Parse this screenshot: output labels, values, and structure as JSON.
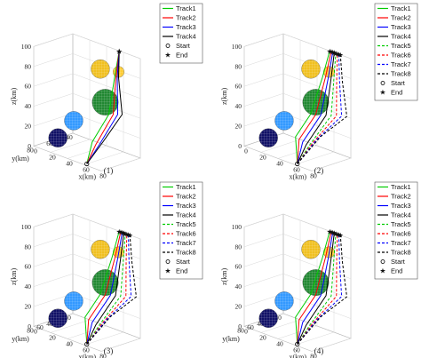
{
  "chart_data": [
    {
      "type": "line",
      "subplot_label": "(1)",
      "zlabel": "z(km)",
      "xlabel": "x(km)",
      "ylabel": "y(km)",
      "z_ticks": [
        "0",
        "20",
        "40",
        "60",
        "80",
        "100"
      ],
      "x_ticks": [
        "0",
        "20",
        "40",
        "60",
        "80"
      ],
      "y_ticks": [
        "80",
        "60",
        "40"
      ],
      "legend": [
        "Track1",
        "Track2",
        "Track3",
        "Track4",
        "Start",
        "End"
      ],
      "colors": {
        "Track1": "#00cc00",
        "Track2": "#ff0000",
        "Track3": "#0000ff",
        "Track4": "#000000"
      },
      "styles": {
        "Track1": "solid",
        "Track2": "solid",
        "Track3": "solid",
        "Track4": "solid"
      },
      "start": [
        [
          60,
          70,
          0
        ]
      ],
      "end": [
        [
          60,
          0,
          100
        ]
      ],
      "obstacles": [
        {
          "color": "#f0c020",
          "center": [
            50,
            30,
            85
          ],
          "r": 10
        },
        {
          "color": "#ffcc33",
          "center": [
            60,
            10,
            82
          ],
          "r": 6
        },
        {
          "color": "#228833",
          "center": [
            50,
            20,
            50
          ],
          "r": 14
        },
        {
          "color": "#3399ff",
          "center": [
            30,
            50,
            30
          ],
          "r": 10
        },
        {
          "color": "#111166",
          "center": [
            20,
            65,
            12
          ],
          "r": 10
        }
      ]
    },
    {
      "type": "line",
      "subplot_label": "(2)",
      "zlabel": "z(km)",
      "xlabel": "x(km)",
      "ylabel": "",
      "z_ticks": [
        "0",
        "20",
        "40",
        "60",
        "80",
        "100"
      ],
      "x_ticks": [
        "0",
        "20",
        "40",
        "60",
        "80"
      ],
      "legend": [
        "Track1",
        "Track2",
        "Track3",
        "Track4",
        "Track5",
        "Track6",
        "Track7",
        "Track8",
        "Start",
        "End"
      ],
      "colors": {
        "Track1": "#00cc00",
        "Track2": "#ff0000",
        "Track3": "#0000ff",
        "Track4": "#000000",
        "Track5": "#00cc00",
        "Track6": "#ff0000",
        "Track7": "#0000ff",
        "Track8": "#000000"
      },
      "styles": {
        "Track1": "solid",
        "Track2": "solid",
        "Track3": "solid",
        "Track4": "solid",
        "Track5": "dashed",
        "Track6": "dashed",
        "Track7": "dashed",
        "Track8": "dashed"
      }
    },
    {
      "type": "line",
      "subplot_label": "(3)",
      "zlabel": "z(km)",
      "xlabel": "x(km)",
      "ylabel": "y(km)",
      "z_ticks": [
        "0",
        "20",
        "40",
        "60",
        "80",
        "100"
      ],
      "x_ticks": [
        "0",
        "20",
        "40",
        "60",
        "80"
      ],
      "y_ticks": [
        "80",
        "60",
        "40",
        "20",
        "0"
      ],
      "legend": [
        "Track1",
        "Track2",
        "Track3",
        "Track4",
        "Track5",
        "Track6",
        "Track7",
        "Track8",
        "Start",
        "End"
      ],
      "colors": {
        "Track1": "#00cc00",
        "Track2": "#ff0000",
        "Track3": "#0000ff",
        "Track4": "#000000",
        "Track5": "#00cc00",
        "Track6": "#ff0000",
        "Track7": "#0000ff",
        "Track8": "#000000"
      },
      "styles": {
        "Track1": "solid",
        "Track2": "solid",
        "Track3": "solid",
        "Track4": "solid",
        "Track5": "dashed",
        "Track6": "dashed",
        "Track7": "dashed",
        "Track8": "dashed"
      }
    },
    {
      "type": "line",
      "subplot_label": "(4)",
      "zlabel": "z(km)",
      "xlabel": "x(km)",
      "ylabel": "y(km)",
      "z_ticks": [
        "0",
        "20",
        "40",
        "60",
        "80",
        "100"
      ],
      "x_ticks": [
        "0",
        "20",
        "40",
        "60",
        "80"
      ],
      "y_ticks": [
        "80",
        "60",
        "40",
        "20",
        "0"
      ],
      "legend": [
        "Track1",
        "Track2",
        "Track3",
        "Track4",
        "Track5",
        "Track6",
        "Track7",
        "Track8",
        "Start",
        "End"
      ],
      "colors": {
        "Track1": "#00cc00",
        "Track2": "#ff0000",
        "Track3": "#0000ff",
        "Track4": "#000000",
        "Track5": "#00cc00",
        "Track6": "#ff0000",
        "Track7": "#0000ff",
        "Track8": "#000000"
      },
      "styles": {
        "Track1": "solid",
        "Track2": "solid",
        "Track3": "solid",
        "Track4": "solid",
        "Track5": "dashed",
        "Track6": "dashed",
        "Track7": "dashed",
        "Track8": "dashed"
      }
    }
  ]
}
